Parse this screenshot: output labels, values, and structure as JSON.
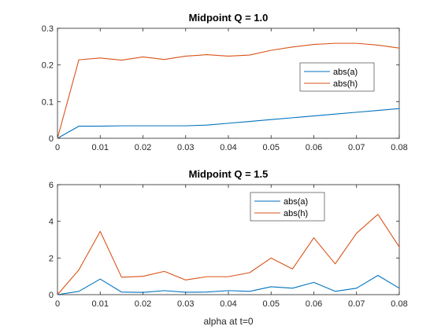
{
  "chart_data": [
    {
      "type": "line",
      "title": "Midpoint Q = 1.0",
      "xlabel": "",
      "ylabel": "",
      "xlim": [
        0,
        0.08
      ],
      "ylim": [
        0,
        0.3
      ],
      "xticks": [
        "0",
        "0.01",
        "0.02",
        "0.03",
        "0.04",
        "0.05",
        "0.06",
        "0.07",
        "0.08"
      ],
      "yticks": [
        "0",
        "0.1",
        "0.2",
        "0.3"
      ],
      "grid": false,
      "legend_position": "right",
      "x": [
        0,
        0.005,
        0.01,
        0.015,
        0.02,
        0.025,
        0.03,
        0.035,
        0.04,
        0.045,
        0.05,
        0.055,
        0.06,
        0.065,
        0.07,
        0.075,
        0.08
      ],
      "series": [
        {
          "name": "abs(a)",
          "color": "#0072bd",
          "values": [
            0,
            0.033,
            0.033,
            0.034,
            0.034,
            0.034,
            0.034,
            0.036,
            0.041,
            0.046,
            0.051,
            0.056,
            0.061,
            0.066,
            0.071,
            0.076,
            0.081
          ]
        },
        {
          "name": "abs(h)",
          "color": "#d95319",
          "values": [
            0,
            0.214,
            0.219,
            0.213,
            0.222,
            0.215,
            0.224,
            0.228,
            0.224,
            0.227,
            0.24,
            0.249,
            0.256,
            0.259,
            0.259,
            0.254,
            0.246
          ]
        }
      ]
    },
    {
      "type": "line",
      "title": "Midpoint Q = 1.5",
      "xlabel": "alpha at t=0",
      "ylabel": "",
      "xlim": [
        0,
        0.08
      ],
      "ylim": [
        0,
        6
      ],
      "xticks": [
        "0",
        "0.01",
        "0.02",
        "0.03",
        "0.04",
        "0.05",
        "0.06",
        "0.07",
        "0.08"
      ],
      "yticks": [
        "0",
        "2",
        "4",
        "6"
      ],
      "grid": false,
      "legend_position": "top-right",
      "x": [
        0,
        0.005,
        0.01,
        0.015,
        0.02,
        0.025,
        0.03,
        0.035,
        0.04,
        0.045,
        0.05,
        0.055,
        0.06,
        0.065,
        0.07,
        0.075,
        0.08
      ],
      "series": [
        {
          "name": "abs(a)",
          "color": "#0072bd",
          "values": [
            0,
            0.18,
            0.85,
            0.14,
            0.12,
            0.22,
            0.13,
            0.14,
            0.22,
            0.18,
            0.43,
            0.35,
            0.67,
            0.18,
            0.35,
            1.05,
            0.35
          ]
        },
        {
          "name": "abs(h)",
          "color": "#d95319",
          "values": [
            0,
            1.35,
            3.45,
            0.95,
            1.0,
            1.27,
            0.8,
            0.98,
            0.98,
            1.2,
            2.0,
            1.4,
            3.1,
            1.68,
            3.35,
            4.38,
            2.6
          ]
        }
      ]
    }
  ]
}
